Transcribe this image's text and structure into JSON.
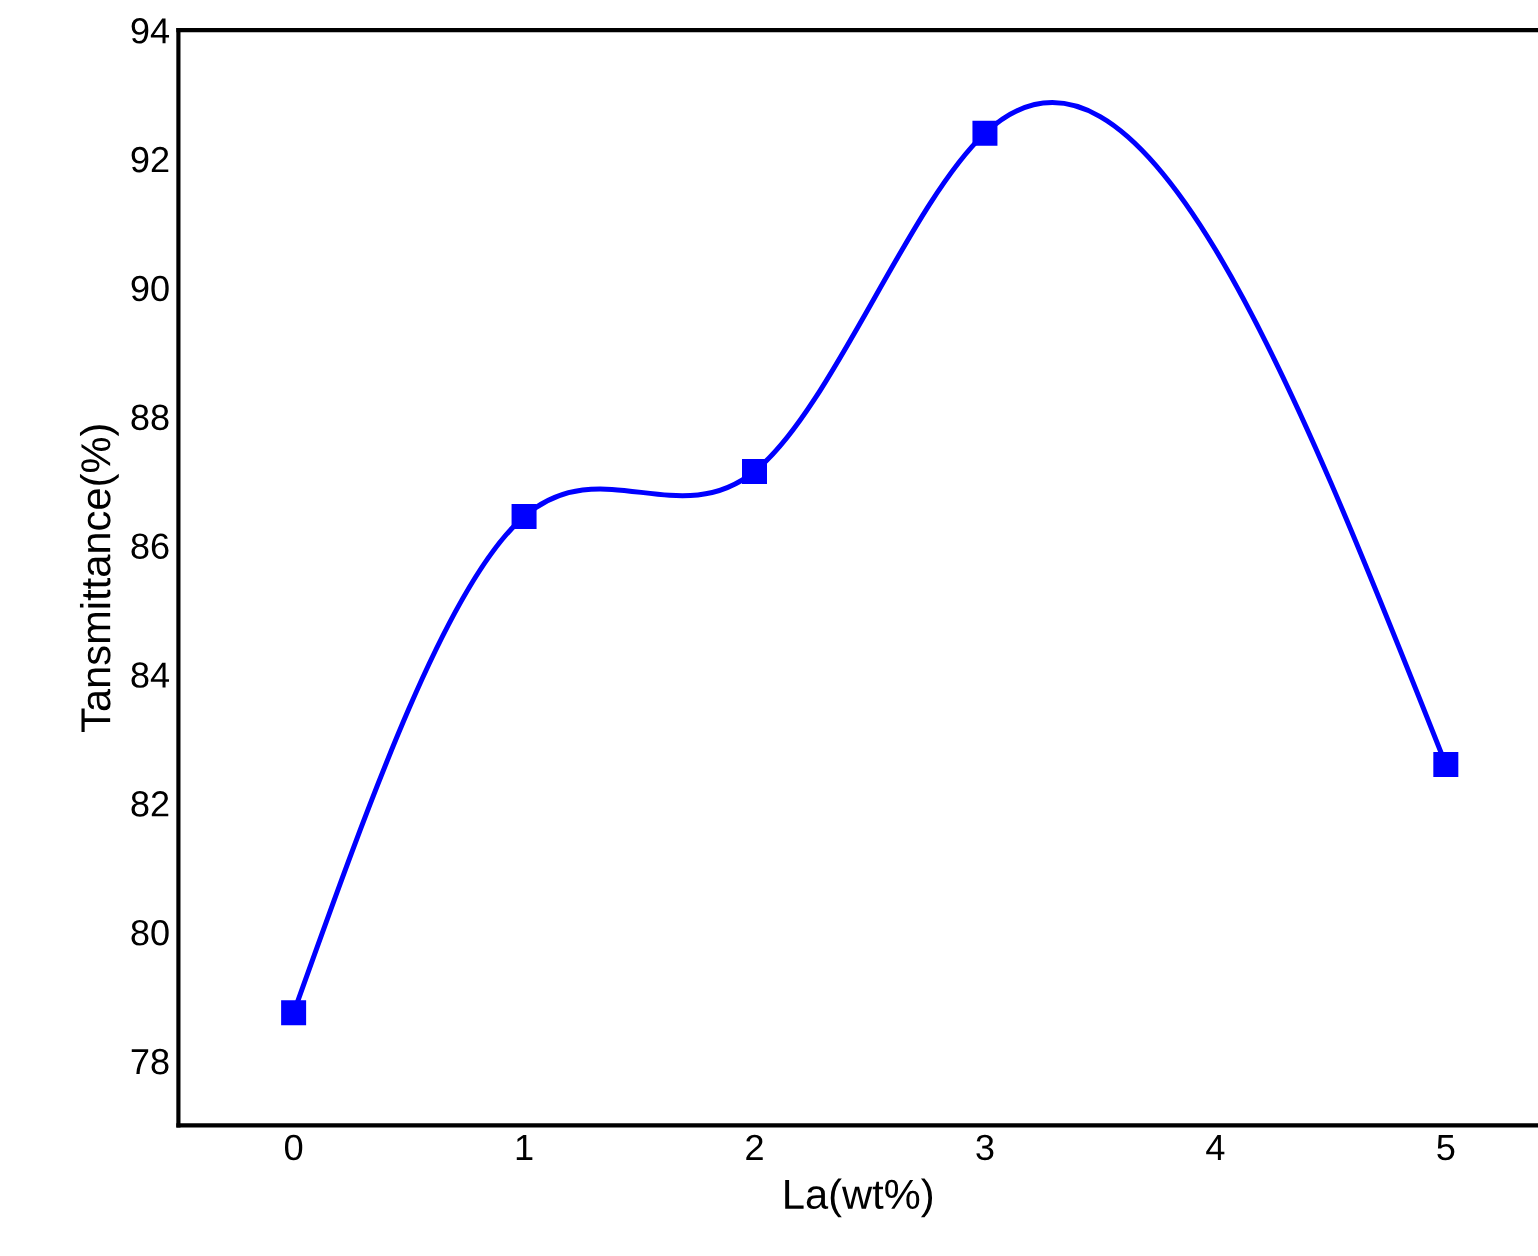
{
  "chart_data": {
    "type": "line",
    "xlabel": "La(wt%)",
    "ylabel": "Tansmittance(%)",
    "x": [
      0,
      1,
      2,
      3,
      5
    ],
    "series": [
      {
        "color": "#0000ff",
        "values": [
          78.75,
          86.45,
          87.15,
          92.4,
          82.6
        ]
      }
    ],
    "marker": "square",
    "line_style": "solid",
    "xlim": [
      -0.5,
      5.4
    ],
    "xticks": [
      0,
      1,
      2,
      3,
      4,
      5
    ],
    "ylim": [
      77,
      94
    ],
    "yticks": [
      78,
      80,
      82,
      84,
      86,
      88,
      90,
      92,
      94
    ],
    "grid": false,
    "legend": false
  }
}
